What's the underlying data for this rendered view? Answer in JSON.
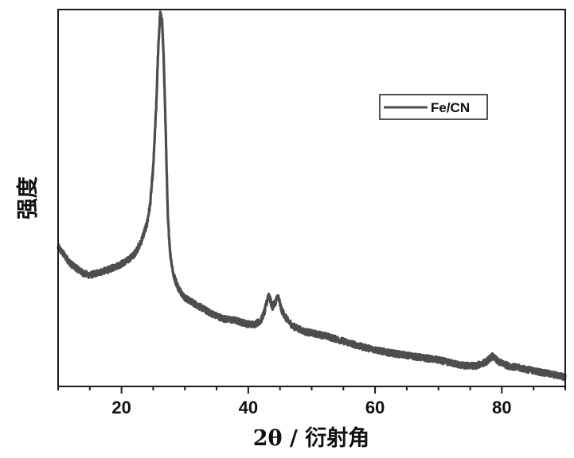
{
  "chart_data": {
    "type": "line",
    "xlabel": "2θ / 衍射角",
    "ylabel": "强度",
    "xlim": [
      10,
      90
    ],
    "ylim": [
      0,
      100
    ],
    "x_ticks": [
      20,
      40,
      60,
      80
    ],
    "x_minor_step": 5,
    "y_tick_labels": false,
    "grid": false,
    "legend_position": "top-right",
    "series": [
      {
        "name": "Fe/CN",
        "color": "#4d4d4d",
        "x": [
          10,
          12,
          14,
          15,
          16,
          18,
          20,
          21,
          22,
          23,
          24,
          24.5,
          25,
          25.5,
          25.8,
          26.1,
          26.4,
          26.7,
          27,
          27.3,
          27.7,
          28.2,
          29,
          30,
          32,
          34,
          36,
          38,
          40,
          41,
          42,
          42.6,
          43.2,
          43.8,
          44.3,
          44.7,
          45.2,
          46,
          47,
          49,
          52,
          55,
          58,
          62,
          66,
          70,
          74,
          76,
          77.5,
          78.5,
          79.5,
          81,
          84,
          87,
          90
        ],
        "y": [
          37,
          32.5,
          30,
          29.5,
          30,
          31,
          32.5,
          33.5,
          35,
          38,
          43,
          48,
          58,
          75,
          90,
          99,
          97,
          85,
          66,
          45,
          35,
          29.5,
          26,
          23.5,
          21.5,
          19.5,
          18,
          17.5,
          16.5,
          16.5,
          17.5,
          20,
          24.5,
          21,
          22.5,
          24,
          20.5,
          18,
          16,
          14.5,
          13.5,
          12,
          10.5,
          9,
          8,
          7,
          5.5,
          5.5,
          6.5,
          8,
          6.5,
          5.5,
          4.5,
          3.5,
          2.5
        ]
      }
    ]
  }
}
